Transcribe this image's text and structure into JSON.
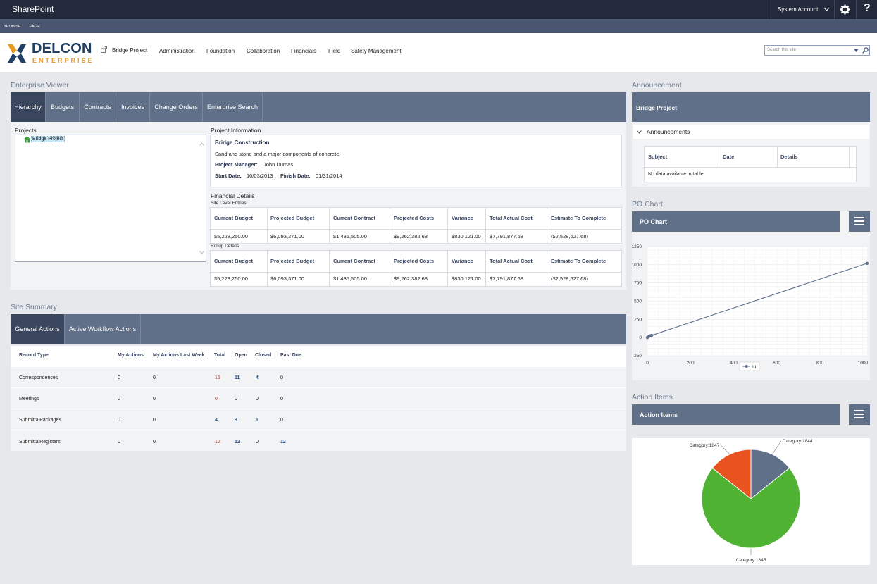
{
  "suitebar": {
    "brand": "SharePoint",
    "account": "System Account"
  },
  "ribbon": {
    "browse": "BROWSE",
    "page": "PAGE"
  },
  "logo": {
    "name": "DELCON",
    "tagline": "ENTERPRISE"
  },
  "nav": {
    "items": [
      "Bridge Project",
      "Administration",
      "Foundation",
      "Collaboration",
      "Financials",
      "Field",
      "Safety Management"
    ]
  },
  "search": {
    "placeholder": "Search this site"
  },
  "enterprise_viewer": {
    "title": "Enterprise Viewer",
    "tabs": [
      "Hierarchy",
      "Budgets",
      "Contracts",
      "Invoices",
      "Change Orders",
      "Enterprise Search"
    ],
    "projects_label": "Projects",
    "tree_item": "Bridge Project",
    "project_info_label": "Project Information",
    "project_name": "Bridge Construction",
    "description": "Sand and stone and a major components of concrete",
    "pm_label": "Project Manager:",
    "pm_value": "John Dumas",
    "start_label": "Start Date:",
    "start_value": "10/03/2013",
    "finish_label": "Finish Date:",
    "finish_value": "01/31/2014",
    "financial_label": "Financial Details",
    "site_level_label": "Site Level Entries",
    "rollup_label": "Rollup Details",
    "fin_headers": [
      "Current Budget",
      "Projected Budget",
      "Current Contract",
      "Projected Costs",
      "Variance",
      "Total Actual Cost",
      "Estimate To Complete"
    ],
    "site_values": [
      "$5,228,250.00",
      "$6,093,371.00",
      "$1,435,505.00",
      "$9,262,382.68",
      "$830,121.00",
      "$7,791,877.68",
      "($2,528,627.68)"
    ],
    "rollup_values": [
      "$5,228,250.00",
      "$6,093,371.00",
      "$1,435,505.00",
      "$9,262,382.68",
      "$830,121.00",
      "$7,791,877.68",
      "($2,528,627.68)"
    ]
  },
  "site_summary": {
    "title": "Site Summary",
    "tabs": [
      "General Actions",
      "Active Workflow Actions"
    ],
    "headers": [
      "Record Type",
      "My Actions",
      "My Actions Last Week",
      "Total",
      "Open",
      "Closed",
      "Past Due"
    ],
    "rows": [
      {
        "type": "Correspondences",
        "my": "0",
        "last": "0",
        "total": "15",
        "open": "11",
        "closed": "4",
        "past": "0"
      },
      {
        "type": "Meetings",
        "my": "0",
        "last": "0",
        "total": "0",
        "open": "0",
        "closed": "0",
        "past": "0"
      },
      {
        "type": "SubmittalPackages",
        "my": "0",
        "last": "0",
        "total": "4",
        "open": "3",
        "closed": "1",
        "past": "0"
      },
      {
        "type": "SubmittalRegisters",
        "my": "0",
        "last": "0",
        "total": "12",
        "open": "12",
        "closed": "0",
        "past": "12"
      }
    ]
  },
  "announcement": {
    "title": "Announcement",
    "header": "Bridge Project",
    "section": "Announcements",
    "columns": [
      "Subject",
      "Date",
      "Details"
    ],
    "empty": "No data available in table"
  },
  "po_chart": {
    "title": "PO Chart",
    "header": "PO Chart"
  },
  "action_items": {
    "title": "Action Items",
    "header": "Action Items"
  },
  "colors": {
    "accent": "#607089",
    "dark": "#232a3b",
    "red": "#c0392b",
    "blue": "#1f4e8c",
    "pie_gray": "#607089",
    "pie_green": "#4fb233",
    "pie_orange": "#e8531f"
  },
  "chart_data": [
    {
      "type": "line",
      "title": "",
      "series": [
        {
          "name": "Id",
          "points": [
            [
              0,
              0
            ],
            [
              5,
              10
            ],
            [
              10,
              20
            ],
            [
              15,
              25
            ],
            [
              20,
              30
            ],
            [
              1020,
              1020
            ]
          ]
        }
      ],
      "xlim": [
        0,
        1020
      ],
      "ylim": [
        -250,
        1250
      ],
      "xticks": [
        "0",
        "200",
        "400",
        "600",
        "800",
        "1000"
      ],
      "yticks": [
        "1250",
        "1000",
        "750",
        "500",
        "250",
        "0",
        "-250"
      ],
      "grid": true,
      "legend": "bottom"
    },
    {
      "type": "pie",
      "title": "",
      "slices": [
        {
          "label": "Category:1844",
          "value": 1
        },
        {
          "label": "Category:1845",
          "value": 5
        },
        {
          "label": "Category:1847",
          "value": 1
        }
      ]
    }
  ]
}
